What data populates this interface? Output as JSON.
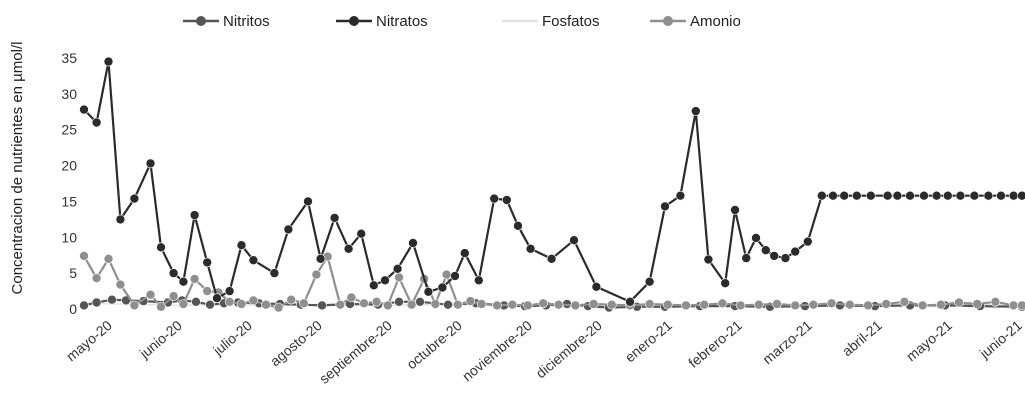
{
  "chart_data": {
    "type": "line",
    "ylabel": "Concentracion de nutrientes  en µmol/l",
    "ylim": [
      0,
      35
    ],
    "yticks": [
      0,
      5,
      10,
      15,
      20,
      25,
      30,
      35
    ],
    "x_tick_labels": [
      "mayo-20",
      "junio-20",
      "julio-20",
      "agosto-20",
      "septiembre-20",
      "octubre-20",
      "noviembre-20",
      "diciembre-20",
      "enero-21",
      "febrero-21",
      "marzo-21",
      "abril-21",
      "mayo-21",
      "junio-21"
    ],
    "x_tick_positions": [
      0,
      1,
      2,
      3,
      4,
      5,
      6,
      7,
      8,
      9,
      10,
      11,
      12,
      13
    ],
    "xlim": [
      -0.3,
      13.1
    ],
    "grid": false,
    "legend_position": "top",
    "series": [
      {
        "name": "Nitritos",
        "color": "#555555",
        "marker": "circle",
        "x": [
          -0.3,
          -0.12,
          0.1,
          0.3,
          0.55,
          0.9,
          1.1,
          1.3,
          1.5,
          1.7,
          1.9,
          2.2,
          2.5,
          2.8,
          3.1,
          3.5,
          3.9,
          4.2,
          4.5,
          4.9,
          5.3,
          5.7,
          6.0,
          6.3,
          6.6,
          6.9,
          7.2,
          7.6,
          8.0,
          8.5,
          9.0,
          9.5,
          10.0,
          10.5,
          11.0,
          11.5,
          12.0,
          12.5,
          13.1
        ],
        "y": [
          0.5,
          0.9,
          1.3,
          1.2,
          1.1,
          0.9,
          1.2,
          1.0,
          0.6,
          0.8,
          0.9,
          0.8,
          0.7,
          0.6,
          0.5,
          0.7,
          0.6,
          1.0,
          1.0,
          0.6,
          0.8,
          0.5,
          0.4,
          0.5,
          0.7,
          0.4,
          0.2,
          0.3,
          0.3,
          0.4,
          0.4,
          0.3,
          0.4,
          0.5,
          0.4,
          0.5,
          0.5,
          0.4,
          0.3
        ]
      },
      {
        "name": "Nitratos",
        "color": "#2b2b2b",
        "marker": "circle",
        "x": [
          -0.3,
          -0.12,
          0.05,
          0.22,
          0.42,
          0.65,
          0.8,
          0.98,
          1.12,
          1.28,
          1.46,
          1.6,
          1.78,
          1.95,
          2.12,
          2.42,
          2.62,
          2.9,
          3.08,
          3.28,
          3.48,
          3.66,
          3.84,
          4.0,
          4.18,
          4.4,
          4.62,
          4.82,
          5.0,
          5.14,
          5.34,
          5.56,
          5.74,
          5.9,
          6.08,
          6.38,
          6.7,
          7.02,
          7.5,
          7.78,
          8.0,
          8.22,
          8.44,
          8.62,
          8.86,
          9.0,
          9.16,
          9.3,
          9.44,
          9.56,
          9.72,
          9.86,
          10.04,
          10.24,
          10.4,
          10.56,
          10.74,
          10.94,
          11.18,
          11.32,
          11.5,
          11.7,
          11.88,
          12.04,
          12.22,
          12.42,
          12.62,
          12.8,
          12.98,
          13.1
        ],
        "y": [
          27.8,
          26.0,
          34.5,
          12.5,
          15.4,
          20.3,
          8.6,
          5.0,
          3.8,
          13.1,
          6.5,
          1.5,
          2.5,
          8.9,
          6.8,
          5.0,
          11.1,
          15.0,
          7.0,
          12.7,
          8.4,
          10.5,
          3.3,
          4.0,
          5.6,
          9.2,
          2.4,
          3.0,
          4.6,
          7.8,
          4.0,
          15.4,
          15.2,
          11.6,
          8.4,
          7.0,
          9.6,
          3.1,
          1.0,
          3.8,
          14.3,
          15.8,
          27.6,
          6.9,
          3.6,
          13.8,
          7.1,
          9.9,
          8.2,
          7.4,
          7.1,
          8.0,
          9.4,
          15.8,
          15.8,
          15.8,
          15.8,
          15.8,
          15.8,
          15.8,
          15.8,
          15.8,
          15.8,
          15.8,
          15.8,
          15.8,
          15.8,
          15.8,
          15.8,
          15.8
        ]
      },
      {
        "name": "Fosfatos",
        "color": "#e2e2e2",
        "marker": "none",
        "x": [
          -0.3,
          0.2,
          0.6,
          1.0,
          1.4,
          1.8,
          2.2,
          2.6,
          3.0,
          3.4,
          3.8,
          4.2,
          4.6,
          5.0,
          5.4,
          5.8,
          6.2,
          6.6,
          7.0,
          7.5,
          8.0,
          8.5,
          9.0,
          9.5,
          10.0,
          10.5,
          11.0,
          11.5,
          12.0,
          12.5,
          13.1
        ],
        "y": [
          0.8,
          0.7,
          0.6,
          0.5,
          0.6,
          0.5,
          0.6,
          0.5,
          0.6,
          0.7,
          0.6,
          0.5,
          0.6,
          0.7,
          0.5,
          0.6,
          0.5,
          0.6,
          0.5,
          0.6,
          0.5,
          0.6,
          0.6,
          0.5,
          0.6,
          0.6,
          0.5,
          0.6,
          0.5,
          0.6,
          0.5
        ]
      },
      {
        "name": "Amonio",
        "color": "#8f8f8f",
        "marker": "circle",
        "x": [
          -0.3,
          -0.12,
          0.05,
          0.22,
          0.42,
          0.65,
          0.8,
          0.98,
          1.12,
          1.28,
          1.46,
          1.62,
          1.78,
          1.95,
          2.12,
          2.3,
          2.48,
          2.66,
          2.84,
          3.02,
          3.18,
          3.36,
          3.52,
          3.7,
          3.88,
          4.04,
          4.2,
          4.38,
          4.56,
          4.72,
          4.88,
          5.04,
          5.22,
          5.38,
          5.6,
          5.82,
          6.04,
          6.26,
          6.48,
          6.72,
          6.98,
          7.24,
          7.5,
          7.78,
          8.04,
          8.3,
          8.56,
          8.82,
          9.08,
          9.34,
          9.6,
          9.86,
          10.12,
          10.38,
          10.64,
          10.9,
          11.16,
          11.42,
          11.68,
          11.94,
          12.2,
          12.46,
          12.72,
          12.98,
          13.1
        ],
        "y": [
          7.4,
          4.3,
          7.0,
          3.4,
          0.5,
          2.0,
          0.3,
          1.8,
          0.7,
          4.2,
          2.5,
          2.3,
          1.0,
          0.7,
          1.2,
          0.6,
          0.2,
          1.3,
          0.8,
          4.8,
          7.3,
          0.6,
          1.6,
          0.8,
          1.0,
          0.5,
          4.4,
          0.6,
          4.2,
          0.7,
          4.8,
          0.6,
          1.1,
          0.7,
          0.5,
          0.6,
          0.5,
          0.8,
          0.6,
          0.5,
          0.7,
          0.6,
          0.5,
          0.7,
          0.6,
          0.5,
          0.6,
          0.8,
          0.5,
          0.6,
          0.7,
          0.5,
          0.6,
          0.8,
          0.6,
          0.5,
          0.7,
          1.0,
          0.5,
          0.6,
          0.9,
          0.7,
          1.0,
          0.5,
          0.5
        ]
      }
    ]
  }
}
